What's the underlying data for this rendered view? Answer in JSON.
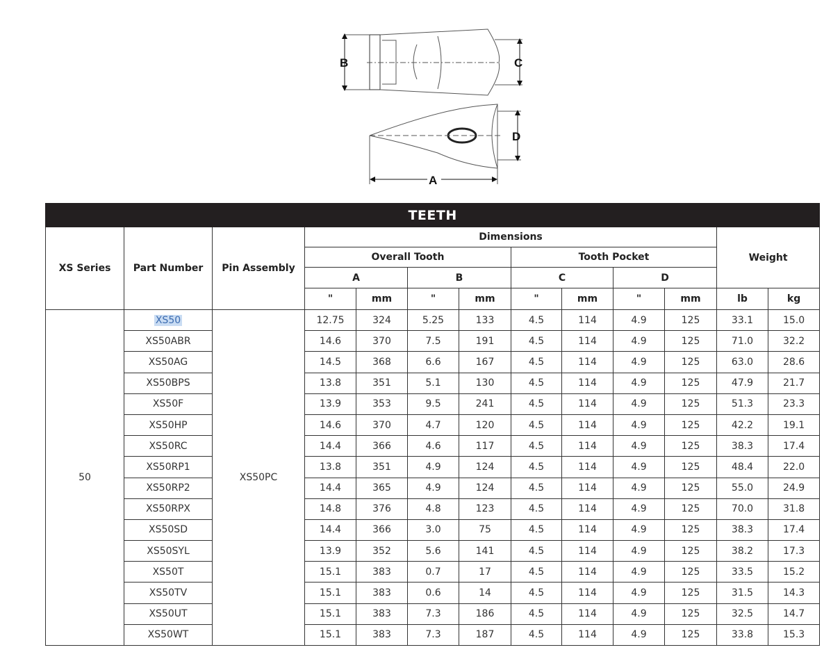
{
  "diagram": {
    "labels": {
      "a": "A",
      "b": "B",
      "c": "C",
      "d": "D"
    }
  },
  "table": {
    "title": "TEETH",
    "headers": {
      "series": "XS Series",
      "part_number": "Part Number",
      "pin_assembly": "Pin Assembly",
      "dimensions": "Dimensions",
      "overall_tooth": "Overall Tooth",
      "tooth_pocket": "Tooth Pocket",
      "weight": "Weight",
      "a": "A",
      "b": "B",
      "c": "C",
      "d": "D",
      "units": [
        "\"",
        "mm",
        "\"",
        "mm",
        "\"",
        "mm",
        "\"",
        "mm",
        "lb",
        "kg"
      ]
    },
    "series": "50",
    "pin_assembly": "XS50PC",
    "selected_part": "XS50",
    "rows": [
      [
        "XS50",
        "12.75",
        "324",
        "5.25",
        "133",
        "4.5",
        "114",
        "4.9",
        "125",
        "33.1",
        "15.0"
      ],
      [
        "XS50ABR",
        "14.6",
        "370",
        "7.5",
        "191",
        "4.5",
        "114",
        "4.9",
        "125",
        "71.0",
        "32.2"
      ],
      [
        "XS50AG",
        "14.5",
        "368",
        "6.6",
        "167",
        "4.5",
        "114",
        "4.9",
        "125",
        "63.0",
        "28.6"
      ],
      [
        "XS50BPS",
        "13.8",
        "351",
        "5.1",
        "130",
        "4.5",
        "114",
        "4.9",
        "125",
        "47.9",
        "21.7"
      ],
      [
        "XS50F",
        "13.9",
        "353",
        "9.5",
        "241",
        "4.5",
        "114",
        "4.9",
        "125",
        "51.3",
        "23.3"
      ],
      [
        "XS50HP",
        "14.6",
        "370",
        "4.7",
        "120",
        "4.5",
        "114",
        "4.9",
        "125",
        "42.2",
        "19.1"
      ],
      [
        "XS50RC",
        "14.4",
        "366",
        "4.6",
        "117",
        "4.5",
        "114",
        "4.9",
        "125",
        "38.3",
        "17.4"
      ],
      [
        "XS50RP1",
        "13.8",
        "351",
        "4.9",
        "124",
        "4.5",
        "114",
        "4.9",
        "125",
        "48.4",
        "22.0"
      ],
      [
        "XS50RP2",
        "14.4",
        "365",
        "4.9",
        "124",
        "4.5",
        "114",
        "4.9",
        "125",
        "55.0",
        "24.9"
      ],
      [
        "XS50RPX",
        "14.8",
        "376",
        "4.8",
        "123",
        "4.5",
        "114",
        "4.9",
        "125",
        "70.0",
        "31.8"
      ],
      [
        "XS50SD",
        "14.4",
        "366",
        "3.0",
        "75",
        "4.5",
        "114",
        "4.9",
        "125",
        "38.3",
        "17.4"
      ],
      [
        "XS50SYL",
        "13.9",
        "352",
        "5.6",
        "141",
        "4.5",
        "114",
        "4.9",
        "125",
        "38.2",
        "17.3"
      ],
      [
        "XS50T",
        "15.1",
        "383",
        "0.7",
        "17",
        "4.5",
        "114",
        "4.9",
        "125",
        "33.5",
        "15.2"
      ],
      [
        "XS50TV",
        "15.1",
        "383",
        "0.6",
        "14",
        "4.5",
        "114",
        "4.9",
        "125",
        "31.5",
        "14.3"
      ],
      [
        "XS50UT",
        "15.1",
        "383",
        "7.3",
        "186",
        "4.5",
        "114",
        "4.9",
        "125",
        "32.5",
        "14.7"
      ],
      [
        "XS50WT",
        "15.1",
        "383",
        "7.3",
        "187",
        "4.5",
        "114",
        "4.9",
        "125",
        "33.8",
        "15.3"
      ]
    ]
  }
}
